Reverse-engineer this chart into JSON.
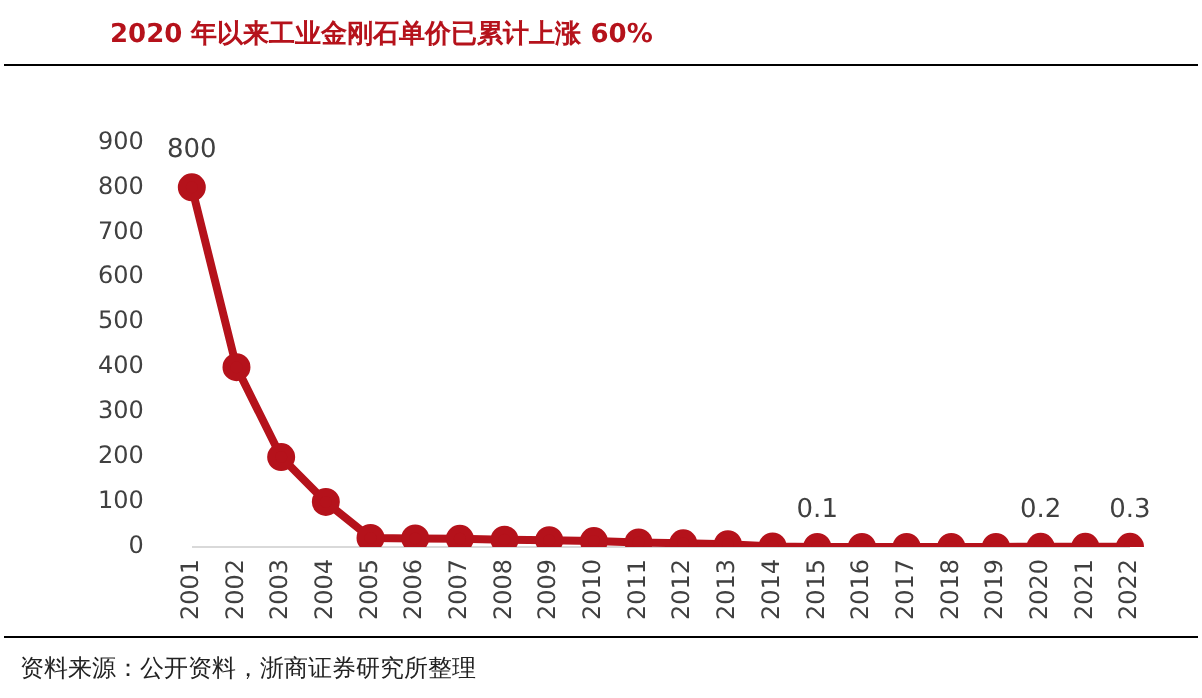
{
  "chart_data": {
    "type": "line",
    "title": "2020 年以来工业金刚石单价已累计上涨 60%",
    "categories": [
      "2001",
      "2002",
      "2003",
      "2004",
      "2005",
      "2006",
      "2007",
      "2008",
      "2009",
      "2010",
      "2011",
      "2012",
      "2013",
      "2014",
      "2015",
      "2016",
      "2017",
      "2018",
      "2019",
      "2020",
      "2021",
      "2022"
    ],
    "values": [
      800,
      400,
      200,
      100,
      20,
      19,
      18,
      16,
      15,
      13,
      10,
      8,
      6,
      1,
      0.1,
      0.1,
      0.1,
      0.1,
      0.1,
      0.2,
      0.2,
      0.3
    ],
    "value_labels": [
      "800",
      null,
      null,
      null,
      null,
      null,
      null,
      null,
      null,
      null,
      null,
      null,
      null,
      null,
      "0.1",
      null,
      null,
      null,
      null,
      "0.2",
      null,
      "0.3"
    ],
    "color": "#b5121b",
    "marker": "circle",
    "line_style": "solid",
    "ylim": [
      0,
      900
    ],
    "yticks": [
      0,
      100,
      200,
      300,
      400,
      500,
      600,
      700,
      800,
      900
    ],
    "grid": false,
    "legend": false,
    "annotations": [
      "资料来源：公开资料，浙商证券研究所整理"
    ]
  }
}
